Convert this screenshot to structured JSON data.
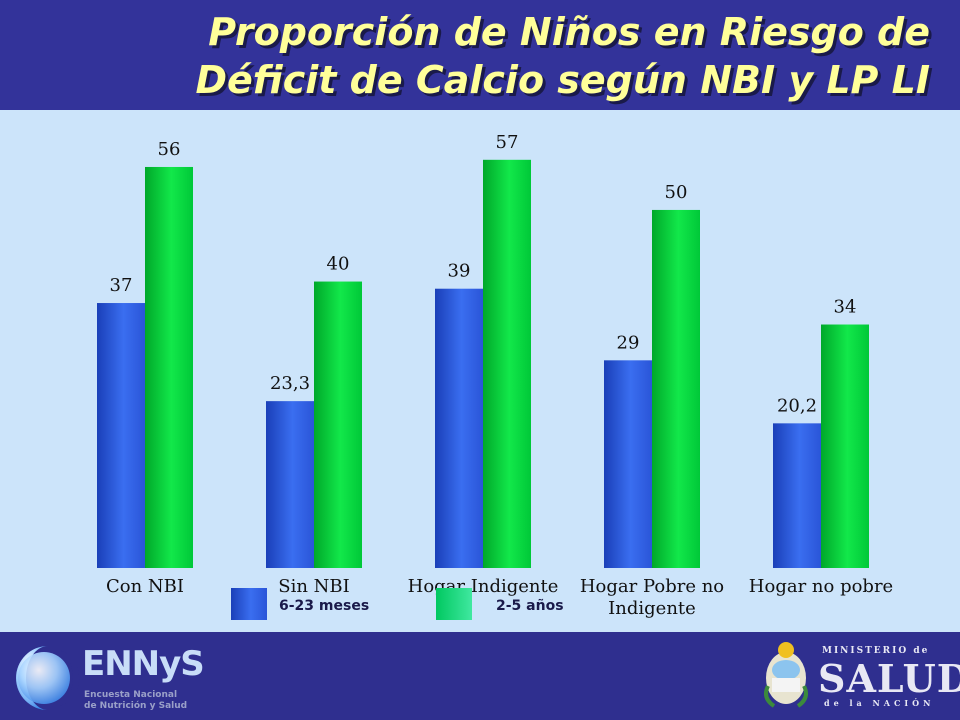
{
  "header": {
    "title_line1": "Proporción de Niños en Riesgo de",
    "title_line2": "Déficit de Calcio según NBI y LP LI"
  },
  "footer": {
    "ennys_logo": "ENNyS",
    "ennys_subtitle_line1": "Encuesta Nacional",
    "ennys_subtitle_line2": "de Nutrición y Salud",
    "ministry_line1": "MINISTERIO de",
    "ministry_line2": "SALUD",
    "ministry_line3": "de la NACIÓN"
  },
  "chart_data": {
    "type": "bar",
    "title": "Proporción de Niños en Riesgo de Déficit de Calcio según NBI y LP LI",
    "categories": [
      [
        "Con NBI"
      ],
      [
        "Sin NBI"
      ],
      [
        "Hogar Indigente"
      ],
      [
        "Hogar Pobre no",
        "Indigente"
      ],
      [
        "Hogar no pobre"
      ]
    ],
    "series": [
      {
        "name": "6-23 meses",
        "values": [
          37,
          23.3,
          39,
          29,
          20.2
        ],
        "labels": [
          "37",
          "23,3",
          "39",
          "29",
          "20,2"
        ],
        "color": "#3355dd"
      },
      {
        "name": "2-5 años",
        "values": [
          56,
          40,
          57,
          50,
          34
        ],
        "labels": [
          "56",
          "40",
          "57",
          "50",
          "34"
        ],
        "color": "#00cc33"
      }
    ],
    "ylim": [
      0,
      62
    ],
    "legend": "bottom",
    "grid": false
  }
}
